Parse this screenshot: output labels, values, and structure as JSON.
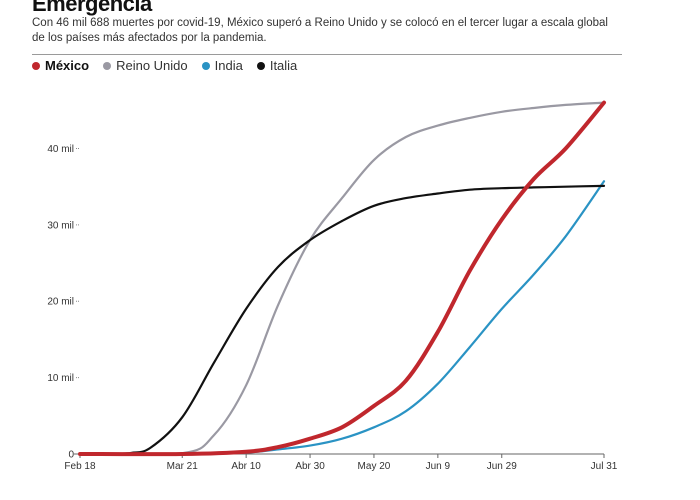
{
  "header": {
    "title": "Emergencia",
    "subtitle": "Con 46 mil 688 muertes por covid-19, México superó a Reino Unido y se colocó en el tercer lugar a escala global de los países más afectados por la pandemia."
  },
  "legend": [
    {
      "name": "México",
      "color": "#c0272d"
    },
    {
      "name": "Reino Unido",
      "color": "#9a99a3"
    },
    {
      "name": "India",
      "color": "#2a93c4"
    },
    {
      "name": "Italia",
      "color": "#111111"
    }
  ],
  "chart_data": {
    "type": "line",
    "title": "Emergencia",
    "xlabel": "",
    "ylabel": "",
    "x_ticks": [
      "Feb 18",
      "Mar 21",
      "Abr 10",
      "Abr 30",
      "May 20",
      "Jun 9",
      "Jun 29",
      "Jul 31"
    ],
    "y_ticks": [
      "0",
      "10 mil",
      "20 mil",
      "30 mil",
      "40 mil"
    ],
    "y_tick_values": [
      0,
      10000,
      20000,
      30000,
      40000
    ],
    "ylim": [
      0,
      47000
    ],
    "x_range_days": [
      0,
      164
    ],
    "grid": false,
    "legend_position": "top-left",
    "series": [
      {
        "name": "México",
        "color": "#c0272d",
        "x": [
          "Feb 18",
          "Mar 21",
          "Abr 10",
          "Abr 20",
          "Abr 30",
          "May 10",
          "May 20",
          "May 30",
          "Jun 9",
          "Jun 19",
          "Jun 29",
          "Jul 9",
          "Jul 19",
          "Jul 31"
        ],
        "y": [
          0,
          0,
          300,
          900,
          2000,
          3500,
          6300,
          9600,
          16000,
          24000,
          30700,
          36000,
          40000,
          46000
        ]
      },
      {
        "name": "Reino Unido",
        "color": "#9a99a3",
        "x": [
          "Feb 18",
          "Mar 21",
          "Mar 31",
          "Abr 10",
          "Abr 20",
          "Abr 30",
          "May 10",
          "May 20",
          "May 30",
          "Jun 9",
          "Jun 19",
          "Jun 29",
          "Jul 9",
          "Jul 19",
          "Jul 31"
        ],
        "y": [
          0,
          100,
          2500,
          9000,
          19500,
          28000,
          33500,
          38500,
          41500,
          43000,
          44000,
          44800,
          45300,
          45700,
          46000
        ]
      },
      {
        "name": "India",
        "color": "#2a93c4",
        "x": [
          "Feb 18",
          "Mar 21",
          "Abr 10",
          "Abr 20",
          "Abr 30",
          "May 10",
          "May 20",
          "May 30",
          "Jun 9",
          "Jun 19",
          "Jun 29",
          "Jul 9",
          "Jul 19",
          "Jul 31"
        ],
        "y": [
          0,
          0,
          200,
          600,
          1100,
          2000,
          3500,
          5600,
          9200,
          14000,
          19000,
          23500,
          28500,
          35700
        ]
      },
      {
        "name": "Italia",
        "color": "#111111",
        "x": [
          "Feb 18",
          "Feb 28",
          "Mar 5",
          "Mar 11",
          "Mar 21",
          "Mar 31",
          "Abr 10",
          "Abr 20",
          "Abr 30",
          "May 10",
          "May 20",
          "May 30",
          "Jun 9",
          "Jun 19",
          "Jun 29",
          "Jul 9",
          "Jul 19",
          "Jul 31"
        ],
        "y": [
          0,
          0,
          150,
          800,
          4800,
          12000,
          19000,
          24500,
          28000,
          30500,
          32500,
          33500,
          34100,
          34600,
          34800,
          34900,
          35000,
          35100
        ]
      }
    ]
  }
}
